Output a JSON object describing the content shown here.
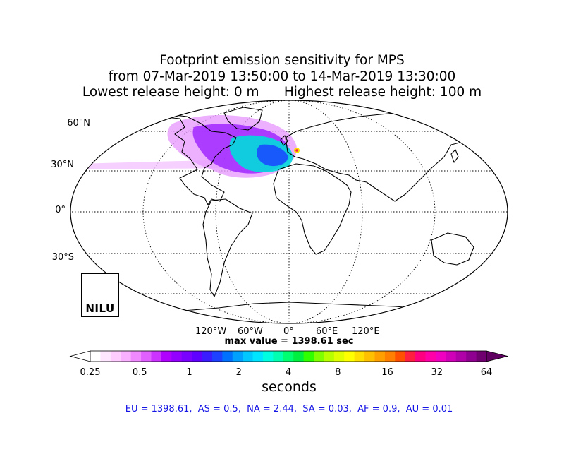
{
  "title": {
    "line1": "Footprint emission sensitivity for MPS",
    "line2": "from 07-Mar-2019 13:50:00 to 14-Mar-2019 13:30:00",
    "line3_left": "Lowest release height: 0 m",
    "line3_right": "Highest release height: 100 m"
  },
  "map": {
    "projection": "robinson",
    "lat_labels": [
      "60°N",
      "30°N",
      "0°",
      "30°S"
    ],
    "lon_labels": [
      "120°W",
      "60°W",
      "0°",
      "60°E",
      "120°E"
    ],
    "max_value_text": "max value = 1398.61 sec",
    "colors": {
      "coastline": "#000000",
      "graticule": "#000000",
      "plume_low": "#e080ff",
      "plume_mid": "#9a1cff",
      "plume_high": "#00e5e5",
      "plume_peak": "#1a4cff"
    },
    "logo": {
      "text": "NILU",
      "arc_color": "#1aa9e8"
    }
  },
  "colorbar": {
    "tick_labels": [
      "0.25",
      "0.5",
      "1",
      "2",
      "4",
      "8",
      "16",
      "32",
      "64"
    ],
    "label": "seconds",
    "colors": [
      "#ffffff",
      "#ffe6ff",
      "#ffccff",
      "#f8b0ff",
      "#f088ff",
      "#e060ff",
      "#cc33ff",
      "#b000ff",
      "#9400ff",
      "#7a00ff",
      "#6000ff",
      "#3b1cff",
      "#1e40ff",
      "#0070ff",
      "#00a0ff",
      "#00c8ff",
      "#00e5ff",
      "#00ffe0",
      "#00ffb0",
      "#00ff70",
      "#00f040",
      "#30ff00",
      "#80ff00",
      "#b8ff00",
      "#e0ff00",
      "#ffff00",
      "#ffe000",
      "#ffc000",
      "#ffa000",
      "#ff8000",
      "#ff5000",
      "#ff2040",
      "#ff0080",
      "#ff00a8",
      "#f000c0",
      "#d000b8",
      "#b000a8",
      "#900090",
      "#700070"
    ],
    "over_color": "#600060"
  },
  "regions_text": "EU = 1398.61,  AS = 0.5,  NA = 2.44,  SA = 0.03,  AF = 0.9,  AU = 0.01"
}
